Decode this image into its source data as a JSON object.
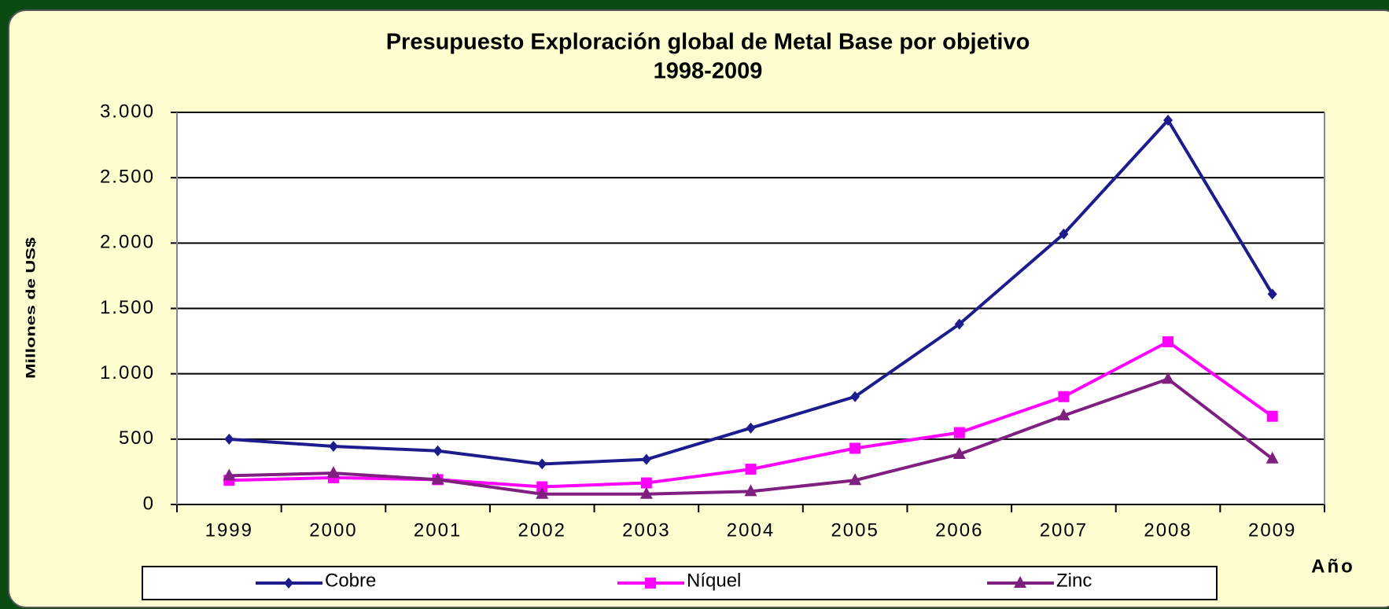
{
  "chart_data": {
    "type": "line",
    "title": "Presupuesto Exploración global de Metal Base por objetivo",
    "subtitle": "1998-2009",
    "ylabel": "Millones de US$",
    "xlabel": "Año",
    "categories": [
      "1999",
      "2000",
      "2001",
      "2002",
      "2003",
      "2004",
      "2005",
      "2006",
      "2007",
      "2008",
      "2009"
    ],
    "series": [
      {
        "name": "Cobre",
        "color": "#1c1c8c",
        "marker": "diamond",
        "values": [
          500,
          445,
          410,
          310,
          345,
          585,
          825,
          1380,
          2070,
          2940,
          1610
        ]
      },
      {
        "name": "Níquel",
        "color": "#ff00ff",
        "marker": "square",
        "values": [
          185,
          205,
          190,
          135,
          165,
          270,
          430,
          550,
          825,
          1245,
          675
        ]
      },
      {
        "name": "Zinc",
        "color": "#7f1f7f",
        "marker": "triangle",
        "values": [
          220,
          240,
          190,
          80,
          80,
          100,
          185,
          385,
          680,
          960,
          350
        ]
      }
    ],
    "ylim": [
      0,
      3000
    ],
    "yticks": [
      0,
      500,
      {
        "value": 1000,
        "label": "1.000"
      },
      {
        "value": 1500,
        "label": "1.500"
      },
      {
        "value": 2000,
        "label": "2.000"
      },
      {
        "value": 2500,
        "label": "2.500"
      },
      {
        "value": 3000,
        "label": "3.000"
      }
    ],
    "grid": true,
    "legend": "bottom"
  }
}
